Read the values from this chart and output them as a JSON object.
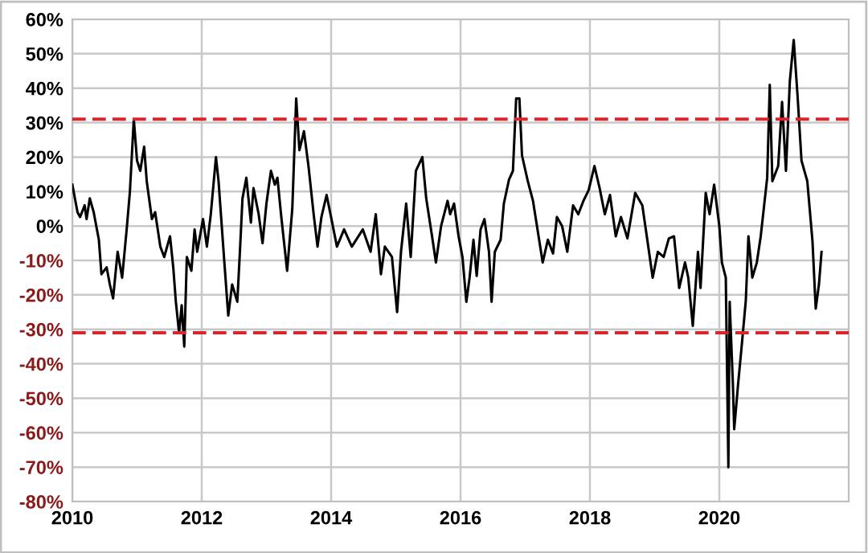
{
  "chart_data": {
    "type": "line",
    "x": [
      2010.0,
      2010.08,
      2010.12,
      2010.19,
      2010.22,
      2010.27,
      2010.33,
      2010.41,
      2010.45,
      2010.53,
      2010.58,
      2010.63,
      2010.7,
      2010.77,
      2010.84,
      2010.89,
      2010.95,
      2011.0,
      2011.05,
      2011.11,
      2011.15,
      2011.23,
      2011.28,
      2011.36,
      2011.42,
      2011.51,
      2011.56,
      2011.6,
      2011.65,
      2011.69,
      2011.73,
      2011.77,
      2011.84,
      2011.89,
      2011.93,
      2012.02,
      2012.08,
      2012.14,
      2012.22,
      2012.26,
      2012.35,
      2012.41,
      2012.47,
      2012.55,
      2012.59,
      2012.63,
      2012.69,
      2012.76,
      2012.8,
      2012.88,
      2012.94,
      2013.0,
      2013.07,
      2013.13,
      2013.17,
      2013.23,
      2013.32,
      2013.4,
      2013.46,
      2013.51,
      2013.58,
      2013.65,
      2013.73,
      2013.79,
      2013.85,
      2013.93,
      2013.99,
      2014.09,
      2014.2,
      2014.32,
      2014.49,
      2014.61,
      2014.69,
      2014.77,
      2014.83,
      2014.94,
      2015.02,
      2015.08,
      2015.16,
      2015.23,
      2015.31,
      2015.41,
      2015.47,
      2015.56,
      2015.62,
      2015.7,
      2015.8,
      2015.84,
      2015.9,
      2015.97,
      2016.03,
      2016.09,
      2016.14,
      2016.2,
      2016.25,
      2016.31,
      2016.37,
      2016.44,
      2016.48,
      2016.53,
      2016.62,
      2016.67,
      2016.75,
      2016.81,
      2016.86,
      2016.91,
      2016.95,
      2017.04,
      2017.12,
      2017.19,
      2017.27,
      2017.35,
      2017.43,
      2017.49,
      2017.57,
      2017.65,
      2017.74,
      2017.82,
      2017.9,
      2017.98,
      2018.07,
      2018.15,
      2018.23,
      2018.31,
      2018.4,
      2018.48,
      2018.58,
      2018.7,
      2018.81,
      2018.89,
      2018.97,
      2019.05,
      2019.14,
      2019.22,
      2019.3,
      2019.38,
      2019.47,
      2019.52,
      2019.59,
      2019.67,
      2019.71,
      2019.79,
      2019.85,
      2019.92,
      2020.0,
      2020.04,
      2020.1,
      2020.14,
      2020.16,
      2020.21,
      2020.23,
      2020.29,
      2020.35,
      2020.41,
      2020.45,
      2020.51,
      2020.58,
      2020.64,
      2020.74,
      2020.78,
      2020.82,
      2020.91,
      2020.97,
      2021.03,
      2021.09,
      2021.15,
      2021.21,
      2021.27,
      2021.36,
      2021.44,
      2021.49,
      2021.54,
      2021.58
    ],
    "series": [
      {
        "color": "#000000",
        "values": [
          12,
          4,
          2.6,
          6,
          2,
          8,
          4,
          -4,
          -14,
          -12,
          -17,
          -21,
          -7.5,
          -15,
          -1,
          10,
          31,
          19,
          16,
          23,
          13,
          2,
          4,
          -6,
          -9,
          -3,
          -12,
          -22,
          -31,
          -23,
          -35,
          -9,
          -13,
          -1,
          -7.5,
          2,
          -6,
          3.4,
          20,
          13,
          -10.6,
          -26,
          -17,
          -22,
          -7.5,
          8,
          14,
          1,
          11,
          3.4,
          -5,
          6.5,
          16,
          12,
          14,
          2.6,
          -13,
          5,
          37,
          22,
          27.5,
          17.4,
          3.4,
          -6,
          2.6,
          9,
          3.4,
          -6,
          -1,
          -6,
          -1,
          -7.5,
          3.4,
          -14,
          -6,
          -9,
          -25,
          -7.5,
          6.5,
          -9,
          16,
          20,
          8,
          -3,
          -10.6,
          0,
          7.3,
          3.4,
          6.5,
          -3,
          -9,
          -22,
          -15,
          -4,
          -14.5,
          -1,
          2,
          -7.5,
          -22,
          -7.5,
          -4,
          6.5,
          13.5,
          16,
          37,
          37,
          20.5,
          13,
          7.3,
          -1,
          -10.6,
          -4,
          -8,
          2.6,
          0,
          -7.5,
          6,
          3.4,
          7.3,
          10.4,
          17.4,
          11,
          3.4,
          9,
          -3,
          2.6,
          -3.6,
          9.6,
          6,
          -4.4,
          -15,
          -7.5,
          -9,
          -3.6,
          -3,
          -18,
          -10.6,
          -15,
          -29,
          -7.5,
          -18,
          9.6,
          3.4,
          12,
          0,
          -10.6,
          -15,
          -70,
          -22,
          -46,
          -59,
          -46,
          -34,
          -21.5,
          -3,
          -15,
          -10.6,
          -3,
          14,
          41,
          13,
          17.4,
          36,
          16,
          42,
          54,
          37.6,
          19,
          13,
          -4.4,
          -24,
          -17,
          -7.5
        ]
      }
    ],
    "xlim": [
      2010,
      2022
    ],
    "xticks": [
      2010,
      2012,
      2014,
      2016,
      2018,
      2020
    ],
    "ylim": [
      -80,
      60
    ],
    "yticks": [
      {
        "value": 60,
        "label": "60%"
      },
      {
        "value": 50,
        "label": "50%"
      },
      {
        "value": 40,
        "label": "40%"
      },
      {
        "value": 30,
        "label": "30%"
      },
      {
        "value": 20,
        "label": "20%"
      },
      {
        "value": 10,
        "label": "10%"
      },
      {
        "value": 0,
        "label": "0%"
      },
      {
        "value": -10,
        "label": "-10%"
      },
      {
        "value": -20,
        "label": "-20%"
      },
      {
        "value": -30,
        "label": "-30%"
      },
      {
        "value": -40,
        "label": "-40%"
      },
      {
        "value": -50,
        "label": "-50%"
      },
      {
        "value": -60,
        "label": "-60%"
      },
      {
        "value": -70,
        "label": "-70%"
      },
      {
        "value": -80,
        "label": "-80%"
      }
    ],
    "ref_lines": [
      {
        "axis": "y",
        "value": 31,
        "color": "#d9262c",
        "line_style": "dashed"
      },
      {
        "axis": "y",
        "value": -31,
        "color": "#d9262c",
        "line_style": "dashed"
      }
    ],
    "grid": true,
    "marker": "none",
    "line_style": "solid"
  }
}
